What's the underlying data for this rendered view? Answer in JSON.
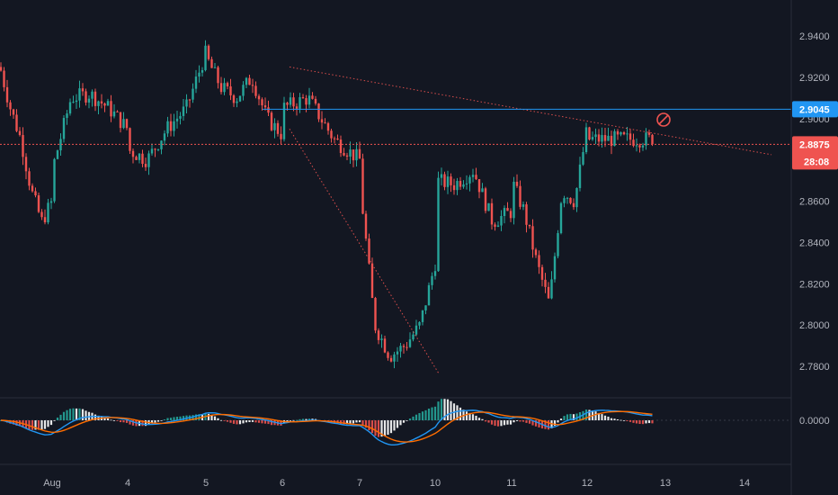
{
  "chart_data": [
    {
      "type": "candlestick",
      "title": "",
      "xlabel": "",
      "ylabel": "",
      "x_tick_labels": [
        "Aug",
        "4",
        "5",
        "6",
        "7",
        "10",
        "11",
        "12",
        "13",
        "14"
      ],
      "ylim": [
        2.766,
        2.951
      ],
      "y_tick_labels": [
        "2.9400",
        "2.9200",
        "2.9000",
        "2.8600",
        "2.8400",
        "2.8200",
        "2.8000",
        "2.7800"
      ],
      "y_tick_values": [
        2.94,
        2.92,
        2.9,
        2.86,
        2.84,
        2.82,
        2.8,
        2.78
      ],
      "grid": false,
      "colors": {
        "up": "#26a69a",
        "down": "#ef5350",
        "background": "#131722"
      },
      "price_path_approx": {
        "Aug": [
          2.925,
          2.905,
          2.89,
          2.865,
          2.85,
          2.86
        ],
        "4": [
          2.875,
          2.91,
          2.912,
          2.905,
          2.895
        ],
        "5": [
          2.885,
          2.88,
          2.895,
          2.905,
          2.932
        ],
        "6": [
          2.93,
          2.915,
          2.91,
          2.92,
          2.9,
          2.892
        ],
        "7": [
          2.905,
          2.91,
          2.89,
          2.88
        ],
        "10": [
          2.87,
          2.8,
          2.785,
          2.79,
          2.8,
          2.83
        ],
        "11": [
          2.87,
          2.868,
          2.875,
          2.85,
          2.855
        ],
        "12": [
          2.87,
          2.855,
          2.83,
          2.81,
          2.865,
          2.86,
          2.895
        ],
        "13": [
          2.89
        ]
      },
      "overlays": {
        "horizontal_line": {
          "value": 2.9045,
          "label": "2.9045",
          "color": "#2196f3"
        },
        "current_price": {
          "value": 2.8875,
          "label": "2.8875",
          "countdown": "28:08",
          "color": "#ef5350"
        },
        "trendline_upper": {
          "from": 2.925,
          "to": 2.8825,
          "color": "#ef5350",
          "style": "dotted"
        },
        "trendline_lower": {
          "from": 2.895,
          "to": 2.7765,
          "color": "#ef5350",
          "style": "dotted"
        },
        "alert_icon": "prohibited-icon"
      }
    },
    {
      "type": "macd",
      "title": "",
      "y_tick_labels": [
        "0.0000"
      ],
      "y_tick_values": [
        0
      ],
      "colors": {
        "macd": "#2196f3",
        "signal": "#ff6d00",
        "hist_up": "#26a69a",
        "hist_down": "#ef5350",
        "hist_fading": "#ffffff"
      }
    }
  ]
}
